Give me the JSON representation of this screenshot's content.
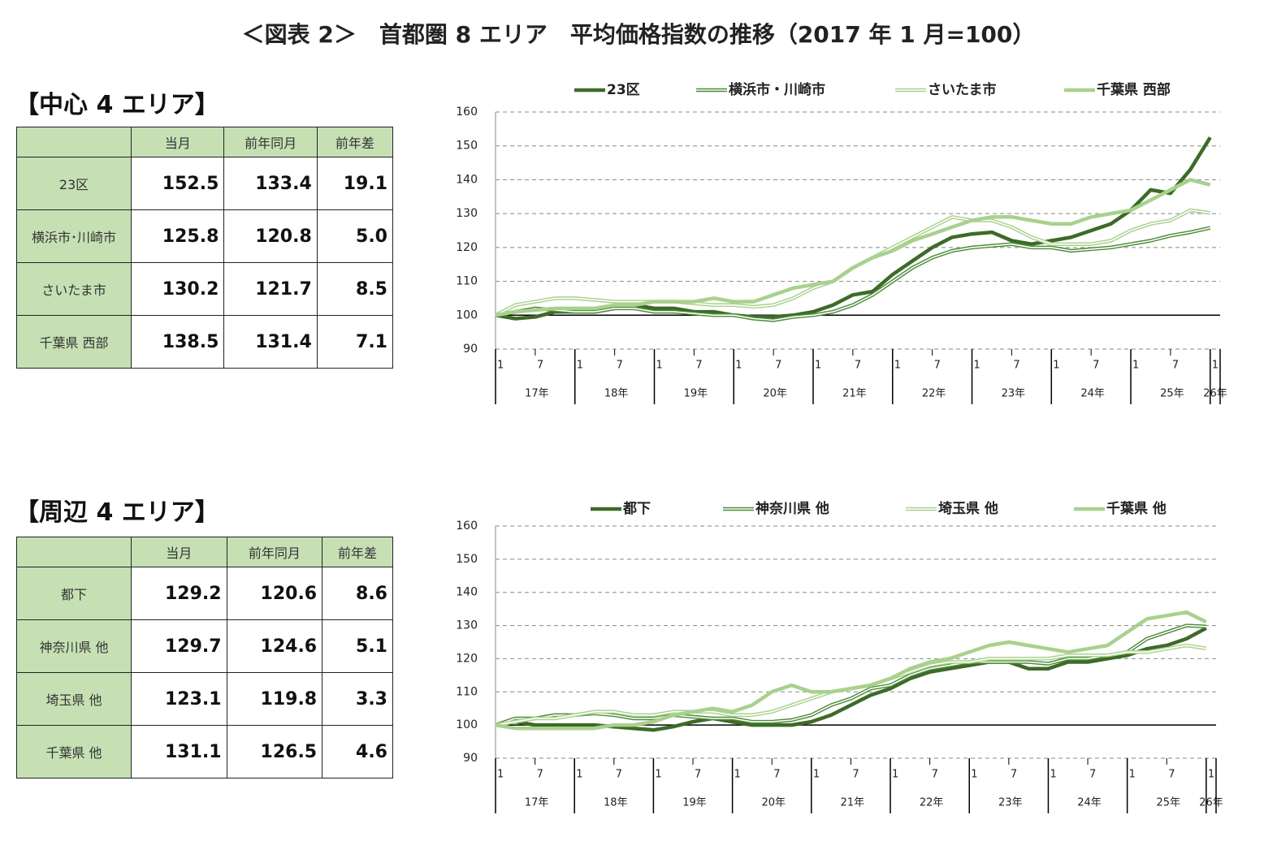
{
  "title": "＜図表 2＞　首都圏 8 エリア　平均価格指数の推移（2017 年 1 月=100）",
  "sections": [
    {
      "heading": "【中心 4 エリア】",
      "table": {
        "header": [
          "当月",
          "前年同月",
          "前年差"
        ],
        "rows": [
          [
            "23区",
            "152.5",
            "133.4",
            "19.1"
          ],
          [
            "横浜市･川崎市",
            "125.8",
            "120.8",
            "5.0"
          ],
          [
            "さいたま市",
            "130.2",
            "121.7",
            "8.5"
          ],
          [
            "千葉県 西部",
            "138.5",
            "131.4",
            "7.1"
          ]
        ]
      }
    },
    {
      "heading": "【周辺 4 エリア】",
      "table": {
        "header": [
          "当月",
          "前年同月",
          "前年差"
        ],
        "rows": [
          [
            "都下",
            "129.2",
            "120.6",
            "8.6"
          ],
          [
            "神奈川県 他",
            "129.7",
            "124.6",
            "5.1"
          ],
          [
            "埼玉県 他",
            "123.1",
            "119.8",
            "3.3"
          ],
          [
            "千葉県 他",
            "131.1",
            "126.5",
            "4.6"
          ]
        ]
      }
    }
  ],
  "chart_data": [
    {
      "type": "line",
      "x": [
        0,
        3,
        6,
        9,
        12,
        15,
        18,
        21,
        24,
        27,
        30,
        33,
        36,
        39,
        42,
        45,
        48,
        51,
        54,
        57,
        60,
        63,
        66,
        69,
        72,
        75,
        78,
        81,
        84,
        87,
        90,
        93,
        96,
        99,
        102,
        105,
        108
      ],
      "xlim": [
        0,
        109.5
      ],
      "ylim": [
        90,
        160
      ],
      "yticks": [
        90,
        100,
        110,
        120,
        130,
        140,
        150,
        160
      ],
      "grid": true,
      "baseline": 100,
      "legend": "top",
      "xticks": [
        {
          "value": 0,
          "label": "1"
        },
        {
          "value": 6,
          "label": "7"
        },
        {
          "value": 12,
          "label": "1"
        },
        {
          "value": 18,
          "label": "7"
        },
        {
          "value": 24,
          "label": "1"
        },
        {
          "value": 30,
          "label": "7"
        },
        {
          "value": 36,
          "label": "1"
        },
        {
          "value": 42,
          "label": "7"
        },
        {
          "value": 48,
          "label": "1"
        },
        {
          "value": 54,
          "label": "7"
        },
        {
          "value": 60,
          "label": "1"
        },
        {
          "value": 66,
          "label": "7"
        },
        {
          "value": 72,
          "label": "1"
        },
        {
          "value": 78,
          "label": "7"
        },
        {
          "value": 84,
          "label": "1"
        },
        {
          "value": 90,
          "label": "7"
        },
        {
          "value": 96,
          "label": "1"
        },
        {
          "value": 102,
          "label": "7"
        },
        {
          "value": 108,
          "label": "1"
        }
      ],
      "xgroups": [
        {
          "value": 0,
          "label": "17年"
        },
        {
          "value": 12,
          "label": "18年"
        },
        {
          "value": 24,
          "label": "19年"
        },
        {
          "value": 36,
          "label": "20年"
        },
        {
          "value": 48,
          "label": "21年"
        },
        {
          "value": 60,
          "label": "22年"
        },
        {
          "value": 72,
          "label": "23年"
        },
        {
          "value": 84,
          "label": "24年"
        },
        {
          "value": 96,
          "label": "25年"
        },
        {
          "value": 108,
          "label": "26年"
        }
      ],
      "series": [
        {
          "name": "23区",
          "color": "#3d6b27",
          "style": "solid",
          "values": [
            100,
            99,
            99.5,
            101,
            101,
            101,
            102,
            103,
            102,
            102,
            101,
            101,
            100,
            99.5,
            99.5,
            100,
            101,
            103,
            106,
            107,
            112,
            116,
            120,
            123,
            124,
            124.5,
            122,
            121,
            122,
            123,
            125,
            127,
            131,
            137,
            136,
            143,
            152.5
          ]
        },
        {
          "name": "横浜市・川崎市",
          "color": "#4e8a3a",
          "style": "double",
          "values": [
            100,
            101,
            102,
            101.5,
            101,
            101,
            102,
            102,
            101,
            101,
            100.5,
            100,
            100,
            99,
            98.5,
            99.5,
            100,
            101,
            103,
            106,
            110,
            114,
            117,
            119,
            120,
            120.5,
            121,
            120,
            120,
            119,
            119.5,
            120,
            121,
            122,
            123.5,
            124.5,
            125.8
          ]
        },
        {
          "name": "さいたま市",
          "color": "#a9d18e",
          "style": "double",
          "values": [
            100,
            103,
            104,
            105,
            105,
            104.5,
            104,
            104,
            104,
            104,
            103.5,
            103,
            103,
            102.5,
            103,
            105,
            108,
            110,
            114,
            117,
            120,
            123,
            126,
            129,
            128,
            128,
            126,
            123,
            121,
            121,
            121,
            122,
            125,
            127,
            128,
            131,
            130.2
          ]
        },
        {
          "name": "千葉県 西部",
          "color": "#a9d18e",
          "style": "solid",
          "values": [
            100,
            101,
            101.5,
            102,
            102,
            102,
            103,
            103,
            104,
            104,
            104,
            105,
            104,
            104,
            106,
            108,
            109,
            110,
            114,
            117,
            119,
            122,
            124,
            126,
            128,
            129,
            129,
            128,
            127,
            127,
            129,
            130,
            131,
            134,
            137,
            140,
            138.5
          ]
        }
      ]
    },
    {
      "type": "line",
      "x": [
        0,
        3,
        6,
        9,
        12,
        15,
        18,
        21,
        24,
        27,
        30,
        33,
        36,
        39,
        42,
        45,
        48,
        51,
        54,
        57,
        60,
        63,
        66,
        69,
        72,
        75,
        78,
        81,
        84,
        87,
        90,
        93,
        96,
        99,
        102,
        105,
        108
      ],
      "xlim": [
        0,
        109.5
      ],
      "ylim": [
        90,
        160
      ],
      "yticks": [
        90,
        100,
        110,
        120,
        130,
        140,
        150,
        160
      ],
      "grid": true,
      "baseline": 100,
      "legend": "top",
      "xticks": [
        {
          "value": 0,
          "label": "1"
        },
        {
          "value": 6,
          "label": "7"
        },
        {
          "value": 12,
          "label": "1"
        },
        {
          "value": 18,
          "label": "7"
        },
        {
          "value": 24,
          "label": "1"
        },
        {
          "value": 30,
          "label": "7"
        },
        {
          "value": 36,
          "label": "1"
        },
        {
          "value": 42,
          "label": "7"
        },
        {
          "value": 48,
          "label": "1"
        },
        {
          "value": 54,
          "label": "7"
        },
        {
          "value": 60,
          "label": "1"
        },
        {
          "value": 66,
          "label": "7"
        },
        {
          "value": 72,
          "label": "1"
        },
        {
          "value": 78,
          "label": "7"
        },
        {
          "value": 84,
          "label": "1"
        },
        {
          "value": 90,
          "label": "7"
        },
        {
          "value": 96,
          "label": "1"
        },
        {
          "value": 102,
          "label": "7"
        },
        {
          "value": 108,
          "label": "1"
        }
      ],
      "xgroups": [
        {
          "value": 0,
          "label": "17年"
        },
        {
          "value": 12,
          "label": "18年"
        },
        {
          "value": 24,
          "label": "19年"
        },
        {
          "value": 36,
          "label": "20年"
        },
        {
          "value": 48,
          "label": "21年"
        },
        {
          "value": 60,
          "label": "22年"
        },
        {
          "value": 72,
          "label": "23年"
        },
        {
          "value": 84,
          "label": "24年"
        },
        {
          "value": 96,
          "label": "25年"
        },
        {
          "value": 108,
          "label": "26年"
        }
      ],
      "series": [
        {
          "name": "都下",
          "color": "#3d6b27",
          "style": "solid",
          "values": [
            100,
            101,
            100,
            100,
            100,
            100,
            99.5,
            99,
            98.5,
            99.5,
            101,
            102,
            101,
            100,
            100,
            100,
            101,
            103,
            106,
            109,
            111,
            114,
            116,
            117,
            118,
            119,
            119,
            117,
            117,
            119,
            119,
            120,
            121,
            123,
            124,
            126,
            129.2
          ]
        },
        {
          "name": "神奈川県 他",
          "color": "#4e8a3a",
          "style": "double",
          "values": [
            100,
            102,
            102,
            103,
            103,
            103.5,
            103,
            102,
            102,
            103,
            102.5,
            102,
            102,
            101,
            101,
            101.5,
            103,
            106,
            108,
            111,
            112,
            115,
            117,
            118,
            119,
            119,
            119,
            119,
            118.5,
            120,
            120,
            121,
            122,
            126,
            128,
            130,
            129.7
          ]
        },
        {
          "name": "埼玉県 他",
          "color": "#a9d18e",
          "style": "double",
          "values": [
            100,
            101,
            102,
            102,
            103,
            104,
            104,
            103,
            103,
            104,
            104,
            104,
            103,
            103,
            104,
            106,
            108,
            110,
            111,
            112,
            114,
            116,
            118,
            119,
            119,
            120,
            120,
            120,
            120,
            121,
            121,
            121,
            122,
            122,
            123,
            124,
            123.1
          ]
        },
        {
          "name": "千葉県 他",
          "color": "#a9d18e",
          "style": "solid",
          "values": [
            100,
            99,
            99,
            99,
            99,
            99,
            100,
            100,
            101,
            103,
            104,
            105,
            104,
            106,
            110,
            112,
            110,
            110,
            111,
            112,
            114,
            117,
            119,
            120,
            122,
            124,
            125,
            124,
            123,
            122,
            123,
            124,
            128,
            132,
            133,
            134,
            131.1
          ]
        }
      ]
    }
  ]
}
